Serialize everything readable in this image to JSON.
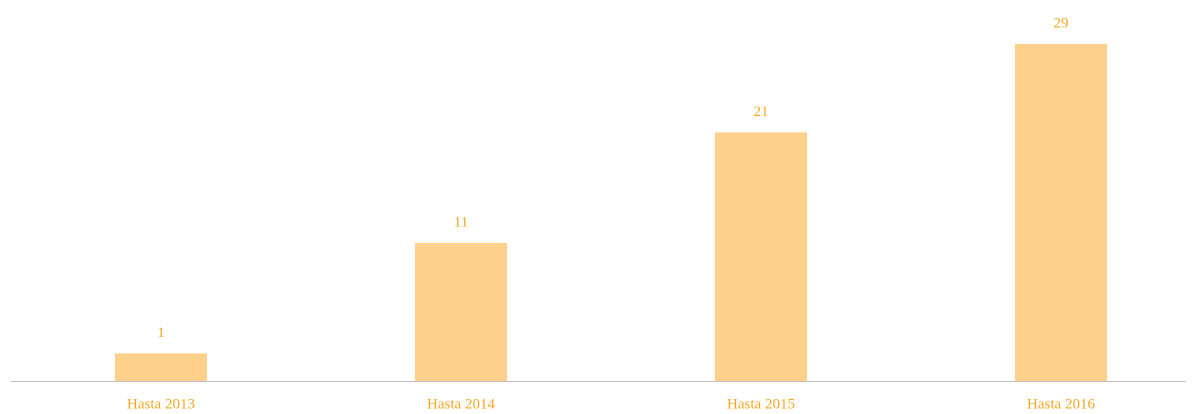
{
  "chart_data": {
    "type": "bar",
    "categories": [
      "Hasta 2013",
      "Hasta 2014",
      "Hasta 2015",
      "Hasta 2016"
    ],
    "values": [
      1,
      11,
      21,
      29
    ],
    "color": "#fdd08c",
    "label_color": "#f5a623",
    "ylim": [
      -1.5,
      29
    ]
  }
}
